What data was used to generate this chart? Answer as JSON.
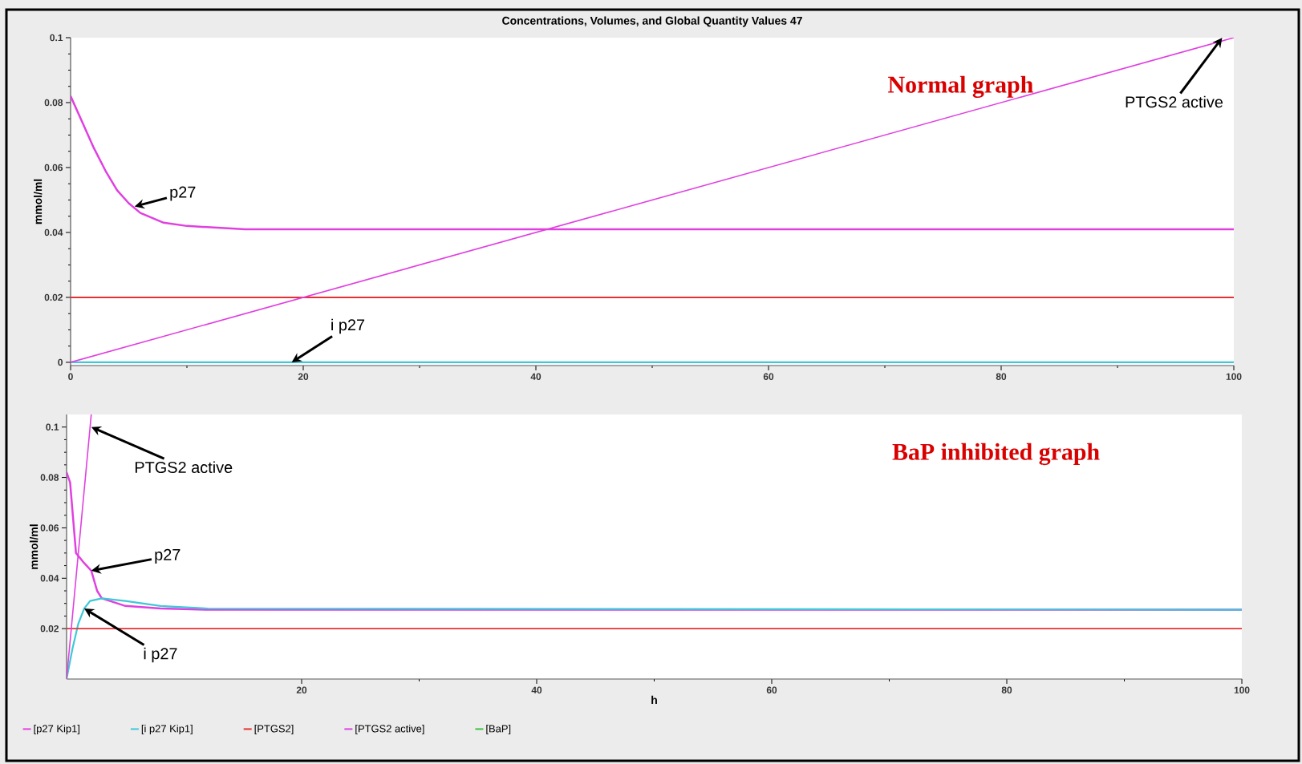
{
  "chart_data": [
    {
      "type": "line",
      "title": "Concentrations, Volumes, and Global Quantity Values 47",
      "ylabel": "mmol/ml",
      "xlim": [
        0,
        100
      ],
      "ylim": [
        -0.001,
        0.1
      ],
      "xticks": [
        0,
        20,
        40,
        60,
        80,
        100
      ],
      "yticks": [
        0,
        0.02,
        0.04,
        0.06,
        0.08,
        0.1
      ],
      "series": [
        {
          "color": "#e040e0",
          "x": [
            0,
            1,
            2,
            3,
            4,
            5,
            6,
            8,
            10,
            15,
            100
          ],
          "values": [
            0.082,
            0.074,
            0.066,
            0.059,
            0.053,
            0.049,
            0.046,
            0.043,
            0.042,
            0.041,
            0.041
          ]
        },
        {
          "color": "#40c8d8",
          "x": [
            0,
            100
          ],
          "values": [
            0,
            0
          ]
        },
        {
          "color": "#e83030",
          "x": [
            0,
            100
          ],
          "values": [
            0.02,
            0.02
          ]
        },
        {
          "color": "#e040e0",
          "x": [
            0,
            100
          ],
          "values": [
            0,
            0.1
          ]
        },
        {
          "color": "#40c040",
          "values": [
            null
          ]
        }
      ],
      "annotations": [
        "Normal graph",
        {
          "text": "p27",
          "x": 5.5,
          "y": 0.048
        },
        {
          "text": "i p27",
          "x": 19,
          "y": 0
        },
        {
          "text": "PTGS2 active",
          "x": 99,
          "y": 0.1
        }
      ]
    },
    {
      "type": "line",
      "xlabel": "h",
      "ylabel": "mmol/ml",
      "xlim": [
        0,
        100
      ],
      "ylim": [
        0,
        0.105
      ],
      "xticks": [
        20,
        40,
        60,
        80,
        100
      ],
      "yticks": [
        0.02,
        0.04,
        0.06,
        0.08,
        0.1
      ],
      "legend": "bottom",
      "series": [
        {
          "name": "[p27 Kip1]",
          "color": "#e040e0",
          "x": [
            0,
            0.3,
            0.8,
            1.5,
            2.1,
            2.6,
            3,
            5,
            8,
            12,
            100
          ],
          "values": [
            0.082,
            0.078,
            0.05,
            0.046,
            0.043,
            0.035,
            0.032,
            0.029,
            0.028,
            0.0275,
            0.0275
          ]
        },
        {
          "name": "[i p27 Kip1]",
          "color": "#40c8d8",
          "x": [
            0,
            0.5,
            1,
            1.5,
            2,
            3,
            5,
            8,
            12,
            100
          ],
          "values": [
            0,
            0.012,
            0.022,
            0.028,
            0.031,
            0.032,
            0.031,
            0.029,
            0.028,
            0.0275
          ]
        },
        {
          "name": "[PTGS2]",
          "color": "#e83030",
          "x": [
            0,
            100
          ],
          "values": [
            0.02,
            0.02
          ]
        },
        {
          "name": "[PTGS2 active]",
          "color": "#e040e0",
          "x": [
            0,
            2.1
          ],
          "values": [
            0,
            0.105
          ]
        },
        {
          "name": "[BaP]",
          "color": "#40c040",
          "values": [
            null
          ]
        }
      ],
      "annotations": [
        "BaP inhibited graph",
        {
          "text": "PTGS2 active",
          "x": 2.1,
          "y": 0.1
        },
        {
          "text": "p27",
          "x": 2.1,
          "y": 0.043
        },
        {
          "text": "i p27",
          "x": 1.5,
          "y": 0.028
        }
      ]
    }
  ]
}
